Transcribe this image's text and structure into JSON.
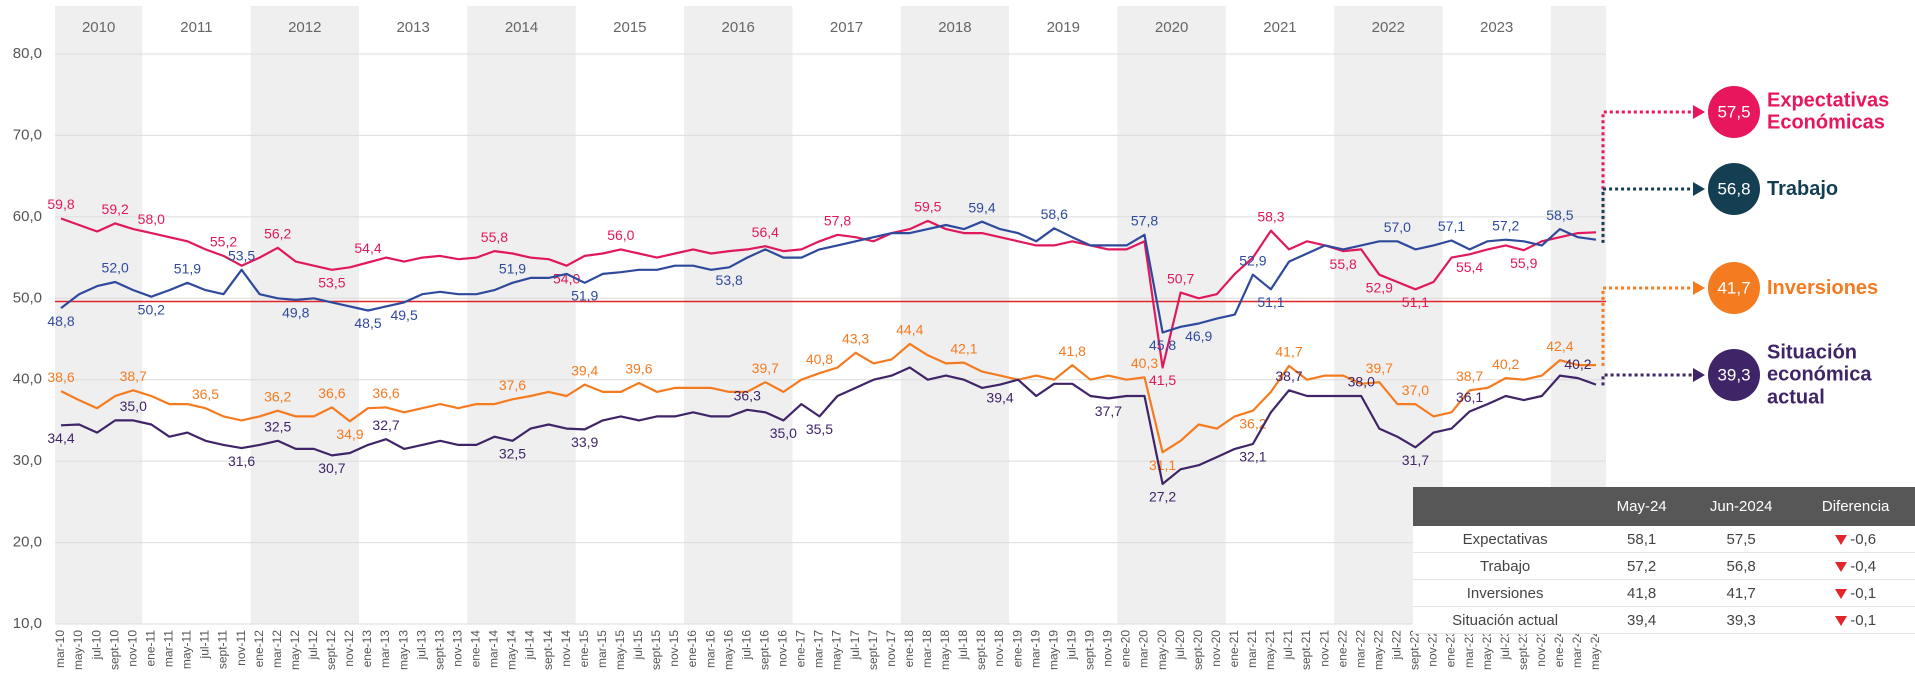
{
  "chart_data": {
    "type": "line",
    "year_bands": [
      2010,
      2011,
      2012,
      2013,
      2014,
      2015,
      2016,
      2017,
      2018,
      2019,
      2020,
      2021,
      2022,
      2023
    ],
    "categories": [
      "mar-10",
      "may-10",
      "jul-10",
      "sept-10",
      "nov-10",
      "ene-11",
      "mar-11",
      "may-11",
      "jul-11",
      "sept-11",
      "nov-11",
      "ene-12",
      "mar-12",
      "may-12",
      "jul-12",
      "sept-12",
      "nov-12",
      "ene-13",
      "mar-13",
      "may-13",
      "jul-13",
      "sept-13",
      "nov-13",
      "ene-14",
      "mar-14",
      "may-14",
      "jul-14",
      "sept-14",
      "nov-14",
      "ene-15",
      "mar-15",
      "may-15",
      "jul-15",
      "sept-15",
      "nov-15",
      "ene-16",
      "mar-16",
      "may-16",
      "jul-16",
      "sept-16",
      "nov-16",
      "ene-17",
      "mar-17",
      "may-17",
      "jul-17",
      "sept-17",
      "nov-17",
      "ene-18",
      "mar-18",
      "may-18",
      "jul-18",
      "sept-18",
      "nov-18",
      "ene-19",
      "mar-19",
      "may-19",
      "jul-19",
      "sept-19",
      "nov-19",
      "ene-20",
      "mar-20",
      "may-20",
      "jul-20",
      "sept-20",
      "nov-20",
      "ene-21",
      "mar-21",
      "may-21",
      "jul-21",
      "sept-21",
      "nov-21",
      "ene-22",
      "mar-22",
      "may-22",
      "jul-22",
      "sept-22",
      "nov-22",
      "ene-23",
      "mar-23",
      "may-23",
      "jul-23",
      "sept-23",
      "nov-23",
      "ene-24",
      "mar-24",
      "may-24"
    ],
    "ylim": [
      10,
      80
    ],
    "yticks": [
      {
        "value": 10,
        "label": "10,0"
      },
      {
        "value": 20,
        "label": "20,0"
      },
      {
        "value": 30,
        "label": "30,0"
      },
      {
        "value": 40,
        "label": "40,0"
      },
      {
        "value": 50,
        "label": "50,0"
      },
      {
        "value": 60,
        "label": "60,0"
      },
      {
        "value": 70,
        "label": "70,0"
      },
      {
        "value": 80,
        "label": "80,0"
      }
    ],
    "grid": true,
    "reference_line": 49.6,
    "reference_color": "#e0262b",
    "series": [
      {
        "name": "Expectativas Económicas",
        "color": "#e0185e",
        "legend_color": "#e8175d",
        "current": 57.5,
        "current_label": "57,5",
        "values": [
          59.8,
          59.0,
          58.2,
          59.2,
          58.5,
          58.0,
          57.5,
          57.0,
          56.0,
          55.2,
          54.0,
          55.0,
          56.2,
          54.5,
          54.0,
          53.5,
          53.8,
          54.4,
          55.0,
          54.5,
          55.0,
          55.2,
          54.8,
          55.0,
          55.8,
          55.5,
          55.0,
          54.8,
          54.0,
          55.2,
          55.5,
          56.0,
          55.5,
          55.0,
          55.5,
          56.0,
          55.5,
          55.8,
          56.0,
          56.4,
          55.8,
          56.0,
          57.0,
          57.8,
          57.5,
          57.0,
          58.0,
          58.5,
          59.5,
          58.5,
          58.0,
          58.0,
          57.5,
          57.0,
          56.5,
          56.5,
          57.0,
          56.5,
          56.0,
          56.0,
          57.0,
          41.5,
          50.7,
          50.0,
          50.5,
          53.0,
          55.0,
          58.3,
          56.0,
          57.0,
          56.5,
          55.8,
          56.0,
          52.9,
          52.0,
          51.1,
          52.0,
          55.0,
          55.4,
          56.0,
          56.5,
          55.9,
          57.0,
          57.5,
          58.0,
          58.1
        ],
        "value_labels": [
          "59,8",
          null,
          null,
          "59,2",
          null,
          "58,0",
          null,
          null,
          null,
          "55,2",
          null,
          null,
          "56,2",
          null,
          null,
          "53,5",
          null,
          "54,4",
          null,
          null,
          null,
          null,
          null,
          null,
          "55,8",
          null,
          null,
          null,
          "54,0",
          null,
          null,
          "56,0",
          null,
          null,
          null,
          null,
          null,
          null,
          null,
          "56,4",
          null,
          null,
          null,
          "57,8",
          null,
          null,
          null,
          null,
          "59,5",
          null,
          null,
          null,
          null,
          null,
          null,
          null,
          null,
          null,
          null,
          null,
          null,
          "41,5",
          "50,7",
          null,
          null,
          null,
          null,
          "58,3",
          null,
          null,
          null,
          "55,8",
          null,
          "52,9",
          null,
          "51,1",
          null,
          null,
          "55,4",
          null,
          null,
          "55,9",
          null,
          null,
          null,
          null
        ]
      },
      {
        "name": "Trabajo",
        "color": "#2f4a9c",
        "legend_color": "#143f52",
        "current": 56.8,
        "current_label": "56,8",
        "values": [
          48.8,
          50.5,
          51.5,
          52.0,
          51.0,
          50.2,
          51.0,
          51.9,
          51.0,
          50.5,
          53.5,
          50.5,
          50.0,
          49.8,
          50.0,
          49.5,
          49.0,
          48.5,
          49.0,
          49.5,
          50.5,
          50.8,
          50.5,
          50.5,
          51.0,
          51.9,
          52.5,
          52.5,
          53.0,
          51.9,
          53.0,
          53.2,
          53.5,
          53.5,
          54.0,
          54.0,
          53.5,
          53.8,
          55.0,
          56.0,
          55.0,
          55.0,
          56.0,
          56.5,
          57.0,
          57.5,
          58.0,
          58.0,
          58.5,
          59.0,
          58.5,
          59.4,
          58.5,
          58.0,
          57.0,
          58.6,
          57.5,
          56.5,
          56.5,
          56.5,
          57.8,
          45.8,
          46.5,
          46.9,
          47.5,
          48.0,
          52.9,
          51.1,
          54.5,
          55.5,
          56.5,
          56.0,
          56.5,
          57.0,
          57.0,
          56.0,
          56.5,
          57.1,
          56.0,
          57.0,
          57.2,
          57.0,
          56.5,
          58.5,
          57.5,
          57.2
        ],
        "value_labels": [
          "48,8",
          null,
          null,
          "52,0",
          null,
          "50,2",
          null,
          "51,9",
          null,
          null,
          "53,5",
          null,
          null,
          "49,8",
          null,
          null,
          null,
          "48,5",
          null,
          "49,5",
          null,
          null,
          null,
          null,
          null,
          "51,9",
          null,
          null,
          null,
          "51,9",
          null,
          null,
          null,
          null,
          null,
          null,
          null,
          "53,8",
          null,
          null,
          null,
          null,
          null,
          null,
          null,
          null,
          null,
          null,
          null,
          null,
          null,
          "59,4",
          null,
          null,
          null,
          "58,6",
          null,
          null,
          null,
          null,
          "57,8",
          "45,8",
          null,
          "46,9",
          null,
          null,
          "52,9",
          "51,1",
          null,
          null,
          null,
          null,
          null,
          null,
          "57,0",
          null,
          null,
          "57,1",
          null,
          null,
          "57,2",
          null,
          null,
          "58,5",
          null,
          null
        ]
      },
      {
        "name": "Inversiones",
        "color": "#f47b20",
        "legend_color": "#f47b20",
        "current": 41.7,
        "current_label": "41,7",
        "values": [
          38.6,
          37.5,
          36.5,
          38.0,
          38.7,
          38.0,
          37.0,
          37.0,
          36.5,
          35.5,
          35.0,
          35.5,
          36.2,
          35.5,
          35.5,
          36.6,
          34.9,
          36.5,
          36.6,
          36.0,
          36.5,
          37.0,
          36.5,
          37.0,
          37.0,
          37.6,
          38.0,
          38.5,
          38.0,
          39.4,
          38.5,
          38.5,
          39.6,
          38.5,
          39.0,
          39.0,
          39.0,
          38.5,
          38.5,
          39.7,
          38.5,
          40.0,
          40.8,
          41.5,
          43.3,
          42.0,
          42.5,
          44.4,
          43.0,
          42.0,
          42.1,
          41.0,
          40.5,
          40.0,
          40.5,
          40.0,
          41.8,
          40.0,
          40.5,
          40.0,
          40.3,
          31.1,
          32.5,
          34.5,
          34.0,
          35.5,
          36.2,
          38.5,
          41.7,
          40.0,
          40.5,
          40.5,
          39.5,
          39.7,
          37.0,
          37.0,
          35.5,
          36.0,
          38.7,
          39.0,
          40.2,
          40.0,
          40.5,
          42.4,
          41.8,
          41.8
        ],
        "value_labels": [
          "38,6",
          null,
          null,
          null,
          "38,7",
          null,
          null,
          null,
          "36,5",
          null,
          null,
          null,
          "36,2",
          null,
          null,
          "36,6",
          "34,9",
          null,
          "36,6",
          null,
          null,
          null,
          null,
          null,
          null,
          "37,6",
          null,
          null,
          null,
          "39,4",
          null,
          null,
          "39,6",
          null,
          null,
          null,
          null,
          null,
          null,
          "39,7",
          null,
          null,
          "40,8",
          null,
          "43,3",
          null,
          null,
          "44,4",
          null,
          null,
          "42,1",
          null,
          null,
          null,
          null,
          null,
          "41,8",
          null,
          null,
          null,
          "40,3",
          "31,1",
          null,
          null,
          null,
          null,
          "36,2",
          null,
          "41,7",
          null,
          null,
          null,
          null,
          "39,7",
          null,
          "37,0",
          null,
          null,
          "38,7",
          null,
          "40,2",
          null,
          null,
          "42,4",
          null,
          null
        ]
      },
      {
        "name": "Situación económica actual",
        "color": "#3f2568",
        "legend_color": "#3f2568",
        "current": 39.3,
        "current_label": "39,3",
        "values": [
          34.4,
          34.5,
          33.5,
          35.0,
          35.0,
          34.5,
          33.0,
          33.5,
          32.5,
          32.0,
          31.6,
          32.0,
          32.5,
          31.5,
          31.5,
          30.7,
          31.0,
          32.0,
          32.7,
          31.5,
          32.0,
          32.5,
          32.0,
          32.0,
          33.0,
          32.5,
          34.0,
          34.5,
          34.0,
          33.9,
          35.0,
          35.5,
          35.0,
          35.5,
          35.5,
          36.0,
          35.5,
          35.5,
          36.3,
          36.0,
          35.0,
          37.0,
          35.5,
          38.0,
          39.0,
          40.0,
          40.5,
          41.5,
          40.0,
          40.5,
          40.0,
          39.0,
          39.4,
          40.0,
          38.0,
          39.5,
          39.5,
          38.0,
          37.7,
          38.0,
          38.0,
          27.2,
          29.0,
          29.5,
          30.5,
          31.5,
          32.1,
          36.0,
          38.7,
          38.0,
          38.0,
          38.0,
          38.0,
          34.0,
          33.0,
          31.7,
          33.5,
          34.0,
          36.1,
          37.0,
          38.0,
          37.5,
          38.0,
          40.5,
          40.2,
          39.4
        ],
        "value_labels": [
          "34,4",
          null,
          null,
          null,
          "35,0",
          null,
          null,
          null,
          null,
          null,
          "31,6",
          null,
          "32,5",
          null,
          null,
          "30,7",
          null,
          null,
          "32,7",
          null,
          null,
          null,
          null,
          null,
          null,
          "32,5",
          null,
          null,
          null,
          "33,9",
          null,
          null,
          null,
          null,
          null,
          null,
          null,
          null,
          "36,3",
          null,
          "35,0",
          null,
          "35,5",
          null,
          null,
          null,
          null,
          null,
          null,
          null,
          null,
          null,
          "39,4",
          null,
          null,
          null,
          null,
          null,
          "37,7",
          null,
          null,
          "27,2",
          null,
          null,
          null,
          null,
          "32,1",
          null,
          "38,7",
          null,
          null,
          null,
          "38,0",
          null,
          null,
          "31,7",
          null,
          null,
          "36,1",
          null,
          null,
          null,
          null,
          null,
          "40,2",
          null
        ]
      }
    ],
    "table": {
      "columns": [
        "May-24",
        "Jun-2024",
        "Diferencia"
      ],
      "rows": [
        [
          "Expectativas",
          "58,1",
          "57,5",
          "-0,6"
        ],
        [
          "Trabajo",
          "57,2",
          "56,8",
          "-0,4"
        ],
        [
          "Inversiones",
          "41,8",
          "41,7",
          "-0,1"
        ],
        [
          "Situación actual",
          "39,4",
          "39,3",
          "-0,1"
        ]
      ]
    }
  }
}
